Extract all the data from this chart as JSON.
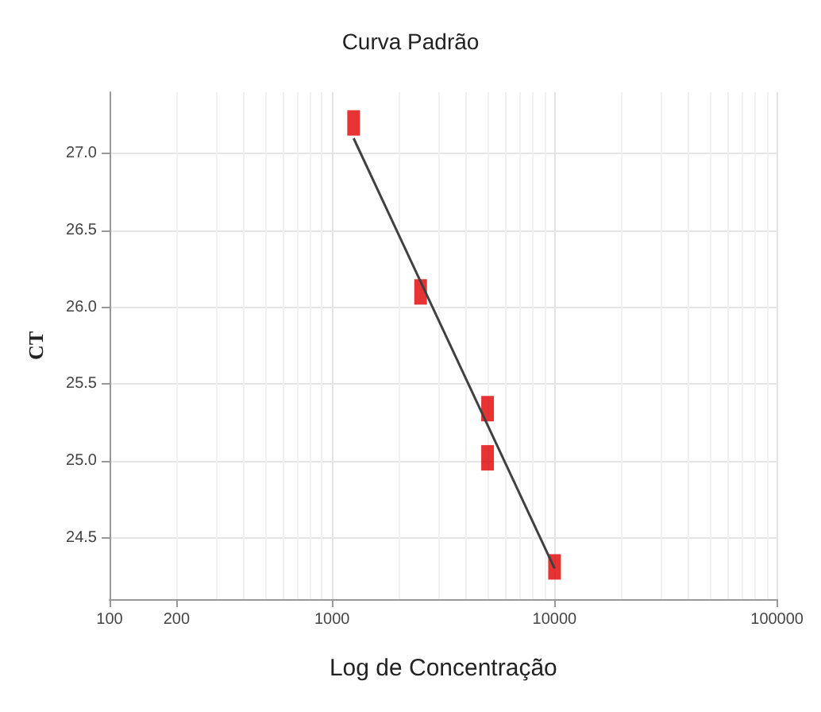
{
  "chart_data": {
    "type": "scatter",
    "title": "Curva Padrão",
    "xlabel": "Log de Concentração",
    "ylabel": "CT",
    "log": "x",
    "grid": true,
    "xlim": [
      100,
      100000
    ],
    "xticks": [
      100,
      200,
      1000,
      10000,
      100000
    ],
    "ylim": [
      24.1,
      27.4
    ],
    "yticks": [
      {
        "value": 24.5,
        "label": "24.5"
      },
      {
        "value": 25,
        "label": "25.0"
      },
      {
        "value": 25.5,
        "label": "25.5"
      },
      {
        "value": 26,
        "label": "26.0"
      },
      {
        "value": 26.5,
        "label": "26.5"
      },
      {
        "value": 27,
        "label": "27.0"
      }
    ],
    "series": [
      {
        "marker": "square",
        "color": "#e00000",
        "x": [
          1250,
          2500,
          5000,
          5000,
          10000
        ],
        "values": [
          27.2,
          26.1,
          25.34,
          25.02,
          24.31
        ]
      },
      {
        "type": "line",
        "marker": "none",
        "color": "#404040",
        "x": [
          1250,
          10000
        ],
        "values": [
          27.1,
          24.3
        ]
      }
    ]
  }
}
